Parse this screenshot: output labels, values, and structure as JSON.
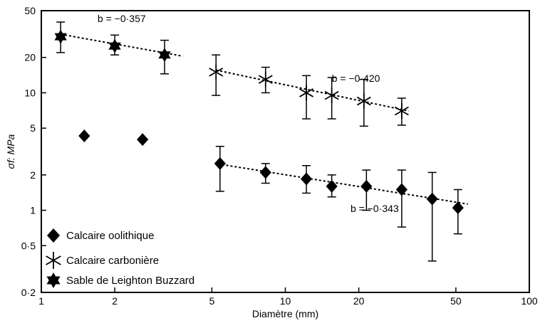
{
  "chart_data": {
    "type": "scatter",
    "xlabel": "Diamètre (mm)",
    "ylabel": "σf: MPa",
    "xscale": "log",
    "yscale": "log",
    "xlim": [
      1,
      100
    ],
    "ylim": [
      0.2,
      50
    ],
    "grid": false,
    "legend_position": "bottom-left",
    "x_ticks": [
      1,
      2,
      5,
      10,
      20,
      50,
      100
    ],
    "x_tick_labels": [
      "1",
      "2",
      "5",
      "10",
      "20",
      "50",
      "100"
    ],
    "y_ticks": [
      0.2,
      0.5,
      1,
      2,
      5,
      10,
      20,
      50
    ],
    "y_tick_labels": [
      "0·2",
      "0·5",
      "1",
      "2",
      "5",
      "10",
      "20",
      "50"
    ],
    "series": [
      {
        "name": "Calcaire oolithique",
        "marker": "diamond",
        "points": [
          {
            "x": 1.5,
            "y": 4.3
          },
          {
            "x": 2.6,
            "y": 4.0
          },
          {
            "x": 5.4,
            "y": 2.5,
            "ylow": 1.45,
            "yhigh": 3.5
          },
          {
            "x": 8.3,
            "y": 2.1,
            "ylow": 1.7,
            "yhigh": 2.5
          },
          {
            "x": 12.2,
            "y": 1.85,
            "ylow": 1.4,
            "yhigh": 2.4
          },
          {
            "x": 15.5,
            "y": 1.6,
            "ylow": 1.3,
            "yhigh": 2.0
          },
          {
            "x": 21.5,
            "y": 1.6,
            "ylow": 1.0,
            "yhigh": 2.2
          },
          {
            "x": 30.0,
            "y": 1.5,
            "ylow": 0.72,
            "yhigh": 2.2
          },
          {
            "x": 40.0,
            "y": 1.25,
            "ylow": 0.37,
            "yhigh": 2.1
          },
          {
            "x": 51.0,
            "y": 1.05,
            "ylow": 0.63,
            "yhigh": 1.5
          }
        ],
        "fit": {
          "x": [
            5.5,
            56
          ],
          "y": [
            2.45,
            1.13
          ],
          "label": "b = −0·343",
          "label_x": 18.5,
          "label_y": 0.97
        }
      },
      {
        "name": "Calcaire carbonière",
        "marker": "asterisk",
        "points": [
          {
            "x": 5.2,
            "y": 15.0,
            "ylow": 9.5,
            "yhigh": 21.0
          },
          {
            "x": 8.3,
            "y": 13.0,
            "ylow": 10.0,
            "yhigh": 16.5
          },
          {
            "x": 12.2,
            "y": 10.0,
            "ylow": 6.0,
            "yhigh": 14.0
          },
          {
            "x": 15.5,
            "y": 9.5,
            "ylow": 6.0,
            "yhigh": 13.5
          },
          {
            "x": 21.0,
            "y": 8.5,
            "ylow": 5.2,
            "yhigh": 13.0
          },
          {
            "x": 30.0,
            "y": 7.0,
            "ylow": 5.3,
            "yhigh": 9.0
          }
        ],
        "fit": {
          "x": [
            5.2,
            32
          ],
          "y": [
            15.6,
            7.0
          ],
          "label": "b = −0·420",
          "label_x": 15.5,
          "label_y": 12.4
        }
      },
      {
        "name": "Sable de Leighton Buzzard",
        "marker": "star",
        "points": [
          {
            "x": 1.2,
            "y": 30.0,
            "ylow": 22.0,
            "yhigh": 40.0
          },
          {
            "x": 2.0,
            "y": 25.0,
            "ylow": 21.0,
            "yhigh": 31.0
          },
          {
            "x": 3.2,
            "y": 21.0,
            "ylow": 14.5,
            "yhigh": 28.0
          }
        ],
        "fit": {
          "x": [
            1.2,
            3.8
          ],
          "y": [
            31.5,
            20.5
          ],
          "label": "b = −0·357",
          "label_x": 1.7,
          "label_y": 40.0
        }
      }
    ]
  }
}
